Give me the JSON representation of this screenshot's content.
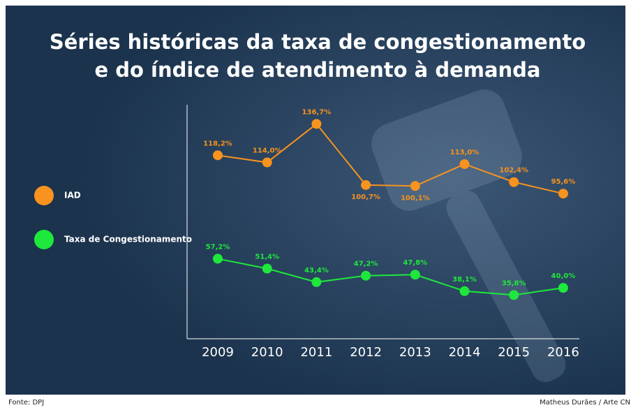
{
  "chart_data": {
    "type": "line",
    "title": "Séries históricas da taxa de congestionamento",
    "subtitle": "e do índice de atendimento à demanda",
    "categories": [
      "2009",
      "2010",
      "2011",
      "2012",
      "2013",
      "2014",
      "2015",
      "2016"
    ],
    "series": [
      {
        "name": "IAD",
        "color": "#f7931e",
        "values": [
          118.2,
          114.0,
          136.7,
          100.7,
          100.1,
          113.0,
          102.4,
          95.6
        ],
        "value_labels": [
          "118,2%",
          "114,0%",
          "136,7%",
          "100,7%",
          "100,1%",
          "113,0%",
          "102,4%",
          "95,6%"
        ]
      },
      {
        "name": "Taxa de Congestionamento",
        "color": "#1ee83c",
        "values": [
          57.2,
          51.4,
          43.4,
          47.2,
          47.8,
          38.1,
          35.8,
          40.0
        ],
        "value_labels": [
          "57,2%",
          "51,4%",
          "43,4%",
          "47,2%",
          "47,8%",
          "38,1%",
          "35,8%",
          "40,0%"
        ]
      }
    ],
    "ylim": [
      10,
      148
    ],
    "grid": false,
    "legend": "left",
    "source": "Fonte: DPJ",
    "credit": "Matheus Durães / Arte CN"
  }
}
